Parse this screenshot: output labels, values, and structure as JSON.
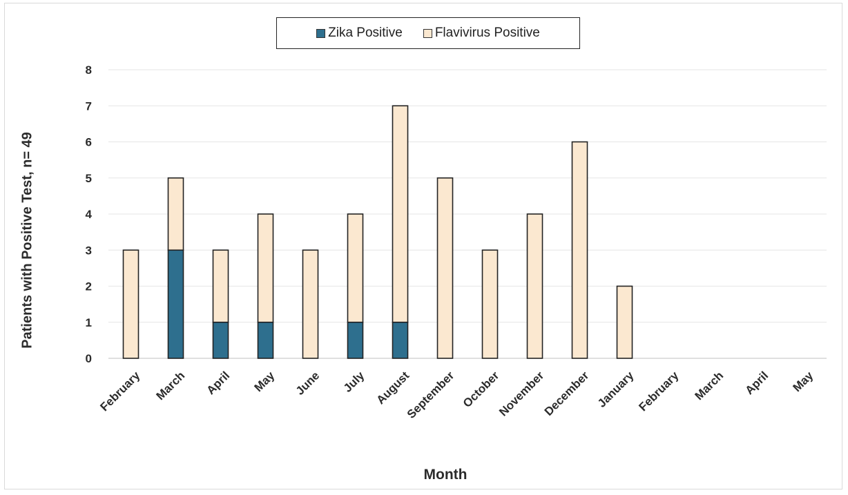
{
  "chart_data": {
    "type": "bar",
    "stacked": true,
    "categories": [
      "February",
      "March",
      "April",
      "May",
      "June",
      "July",
      "August",
      "September",
      "October",
      "November",
      "December",
      "January",
      "February",
      "March",
      "April",
      "May"
    ],
    "series": [
      {
        "name": "Zika Positive",
        "color": "#2e6f8e",
        "values": [
          0,
          3,
          1,
          1,
          0,
          1,
          1,
          0,
          0,
          0,
          0,
          0,
          0,
          0,
          0,
          0
        ]
      },
      {
        "name": "Flavivirus Positive",
        "color": "#fbe8d0",
        "values": [
          3,
          2,
          2,
          3,
          3,
          3,
          6,
          5,
          3,
          4,
          6,
          2,
          0,
          0,
          0,
          0
        ]
      }
    ],
    "title": "",
    "xlabel": "Month",
    "ylabel": "Patients with Positive Test, n= 49",
    "ylim": [
      0,
      8
    ],
    "yticks": [
      "0",
      "1",
      "2",
      "3",
      "4",
      "5",
      "6",
      "7",
      "8"
    ],
    "grid": true,
    "legend": "top"
  }
}
